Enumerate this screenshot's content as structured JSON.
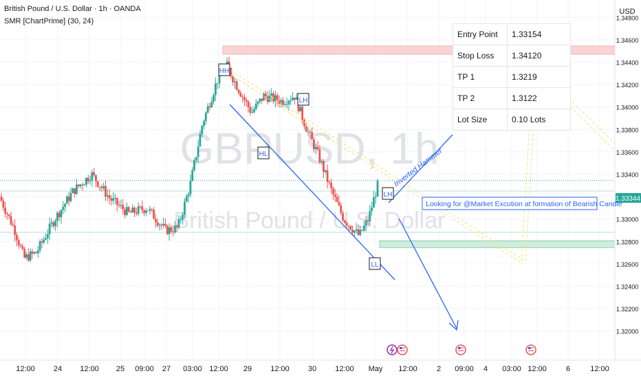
{
  "header": {
    "symbol_line": "British Pound / U.S. Dollar · 1h · OANDA",
    "indicator_line": "SMR [ChartPrime] (30, 24)"
  },
  "watermark": {
    "main": "GBPUSD, 1h",
    "sub": "British Pound / U.S. Dollar"
  },
  "trade_table": {
    "rows": [
      {
        "label": "Entry Point",
        "value": "1.33154"
      },
      {
        "label": "Stop Loss",
        "value": "1.34120"
      },
      {
        "label": "TP 1",
        "value": "1.3219"
      },
      {
        "label": "TP 2",
        "value": "1.3122"
      },
      {
        "label": "Lot Size",
        "value": "0.10 Lots"
      }
    ]
  },
  "annotations": {
    "hammer_label": "Inverted Hammer",
    "market_note": "Looking for @Market Excution at formation of Bearish Candle"
  },
  "colors": {
    "bull": "#26a69a",
    "bear": "#ef5350",
    "accent": "#2962ff",
    "resistance_zone": "#f7c6c6",
    "support_zone": "#cdebdc"
  },
  "chart_data": {
    "type": "candlestick",
    "currency": "USD",
    "last_price": "1.33344",
    "ylim": [
      1.319,
      1.349
    ],
    "y_ticks": [
      "1.34800",
      "1.34600",
      "1.34400",
      "1.34200",
      "1.34000",
      "1.33800",
      "1.33600",
      "1.33400",
      "1.33200",
      "1.33000",
      "1.32800",
      "1.32600",
      "1.32400",
      "1.32200",
      "1.32000"
    ],
    "x_ticks": [
      "12:00",
      "24",
      "12:00",
      "25",
      "09:00",
      "27",
      "03:00",
      "12:00",
      "29",
      "12:00",
      "30",
      "12:00",
      "May",
      "12:00",
      "2",
      "09:00",
      "4",
      "03:00",
      "12:00",
      "6",
      "12:00"
    ],
    "price_path": [
      [
        0,
        1.332
      ],
      [
        0.025,
        1.329
      ],
      [
        0.04,
        1.3265
      ],
      [
        0.06,
        1.327
      ],
      [
        0.09,
        1.33
      ],
      [
        0.12,
        1.3325
      ],
      [
        0.15,
        1.334
      ],
      [
        0.18,
        1.3318
      ],
      [
        0.21,
        1.3305
      ],
      [
        0.24,
        1.331
      ],
      [
        0.27,
        1.329
      ],
      [
        0.29,
        1.3292
      ],
      [
        0.31,
        1.333
      ],
      [
        0.33,
        1.3385
      ],
      [
        0.355,
        1.3425
      ],
      [
        0.37,
        1.3437
      ],
      [
        0.385,
        1.342
      ],
      [
        0.41,
        1.3395
      ],
      [
        0.43,
        1.341
      ],
      [
        0.46,
        1.3405
      ],
      [
        0.48,
        1.341
      ],
      [
        0.5,
        1.338
      ],
      [
        0.52,
        1.3355
      ],
      [
        0.54,
        1.3325
      ],
      [
        0.56,
        1.33
      ],
      [
        0.585,
        1.3285
      ],
      [
        0.6,
        1.33
      ],
      [
        0.615,
        1.333
      ]
    ],
    "levels": {
      "stop_zone": [
        1.3446,
        1.3452
      ],
      "target_zone": [
        1.32745,
        1.32805
      ],
      "current_price": 1.33344,
      "upper_line": 1.3392,
      "lower_line": 1.3331
    },
    "swing_labels": [
      {
        "label": "HH",
        "x": 0.37,
        "price": 1.3445
      },
      {
        "label": "LH",
        "x": 0.475,
        "price": 1.342
      },
      {
        "label": "HL",
        "x": 0.412,
        "price": 1.337
      },
      {
        "label": "LH",
        "x": 0.605,
        "price": 1.3339
      },
      {
        "label": "LL",
        "x": 0.585,
        "price": 1.3275
      }
    ],
    "event_icons": [
      "lightning-event-icon",
      "us-flag-event-icon",
      "us-flag-event-icon",
      "us-flag-event-icon"
    ]
  }
}
